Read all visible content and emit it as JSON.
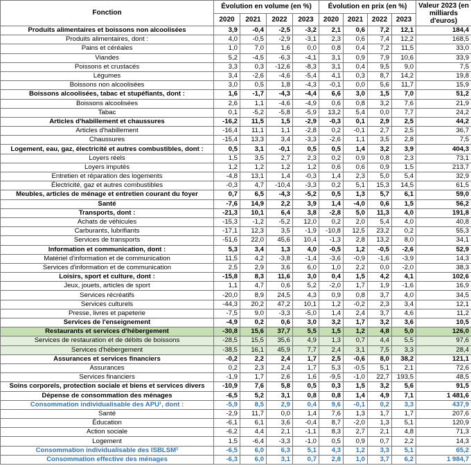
{
  "header": {
    "fonction": "Fonction",
    "volume": "Évolution en volume (en %)",
    "prix": "Évolution en prix (en %)",
    "valeur": "Valeur 2023 (en milliards d'euros)",
    "years_volume": [
      "2020",
      "2021",
      "2022",
      "2023"
    ],
    "years_prix": [
      "2020",
      "2021",
      "2022",
      "2023"
    ]
  },
  "table": {
    "rows": [
      {
        "label": "Produits alimentaires et boissons non alcoolisées",
        "bold": true,
        "volume": [
          "3,9",
          "-0,4",
          "-2,5",
          "-3,2"
        ],
        "prix": [
          "2,1",
          "0,6",
          "7,2",
          "12,1"
        ],
        "valeur": "184,4"
      },
      {
        "label": "Produits alimentaires, dont :",
        "volume": [
          "4,0",
          "-0,5",
          "-2,9",
          "-3,1"
        ],
        "prix": [
          "2,3",
          "0,6",
          "7,4",
          "12,2"
        ],
        "valeur": "168,5"
      },
      {
        "label": "Pains et céréales",
        "volume": [
          "1,0",
          "7,0",
          "1,6",
          "0,0"
        ],
        "prix": [
          "0,8",
          "0,4",
          "7,2",
          "11,5"
        ],
        "valeur": "33,0"
      },
      {
        "label": "Viandes",
        "volume": [
          "5,2",
          "-4,5",
          "-6,3",
          "-4,1"
        ],
        "prix": [
          "3,1",
          "0,9",
          "7,9",
          "10,6"
        ],
        "valeur": "33,9"
      },
      {
        "label": "Poissons et crustacés",
        "volume": [
          "3,3",
          "0,3",
          "-12,6",
          "-8,3"
        ],
        "prix": [
          "3,1",
          "0,4",
          "9,5",
          "9,0"
        ],
        "valeur": "7,5"
      },
      {
        "label": "Légumes",
        "volume": [
          "3,4",
          "-2,6",
          "-4,6",
          "-5,4"
        ],
        "prix": [
          "4,1",
          "0,3",
          "8,7",
          "14,2"
        ],
        "valeur": "19,8"
      },
      {
        "label": "Boissons non alcoolisées",
        "volume": [
          "3,0",
          "0,5",
          "1,8",
          "-4,3"
        ],
        "prix": [
          "-0,1",
          "0,0",
          "5,6",
          "11,7"
        ],
        "valeur": "15,9"
      },
      {
        "label": "Boissons alcoolisées, tabac et stupéfiants, dont :",
        "bold": true,
        "volume": [
          "1,6",
          "-1,7",
          "-4,3",
          "-4,4"
        ],
        "prix": [
          "6,6",
          "3,0",
          "1,5",
          "7,0"
        ],
        "valeur": "51,2"
      },
      {
        "label": "Boissons alcoolisées",
        "volume": [
          "2,6",
          "1,1",
          "-4,6",
          "-4,9"
        ],
        "prix": [
          "0,6",
          "0,8",
          "3,2",
          "7,6"
        ],
        "valeur": "21,9"
      },
      {
        "label": "Tabac",
        "volume": [
          "0,1",
          "-5,2",
          "-5,8",
          "-5,9"
        ],
        "prix": [
          "13,2",
          "5,4",
          "0,0",
          "7,7"
        ],
        "valeur": "24,2"
      },
      {
        "label": "Articles d'habillement et chaussures",
        "bold": true,
        "volume": [
          "-16,2",
          "11,5",
          "1,5",
          "-2,9"
        ],
        "prix": [
          "-0,3",
          "0,1",
          "2,9",
          "2,5"
        ],
        "valeur": "44,2"
      },
      {
        "label": "Articles d'habillement",
        "volume": [
          "-16,4",
          "11,1",
          "1,1",
          "-2,8"
        ],
        "prix": [
          "0,2",
          "-0,1",
          "2,7",
          "2,5"
        ],
        "valeur": "36,7"
      },
      {
        "label": "Chaussures",
        "volume": [
          "-15,4",
          "13,3",
          "3,4",
          "-3,3"
        ],
        "prix": [
          "-2,6",
          "1,1",
          "3,5",
          "2,8"
        ],
        "valeur": "7,5"
      },
      {
        "label": "Logement, eau, gaz, électricité et autres combustibles, dont :",
        "bold": true,
        "volume": [
          "0,5",
          "3,1",
          "-0,1",
          "0,5"
        ],
        "prix": [
          "0,5",
          "1,4",
          "3,2",
          "3,9"
        ],
        "valeur": "404,3"
      },
      {
        "label": "Loyers réels",
        "volume": [
          "1,5",
          "3,5",
          "2,7",
          "2,3"
        ],
        "prix": [
          "0,2",
          "0,9",
          "0,8",
          "2,3"
        ],
        "valeur": "73,1"
      },
      {
        "label": "Loyers imputés",
        "volume": [
          "1,2",
          "1,2",
          "1,2",
          "1,2"
        ],
        "prix": [
          "0,6",
          "0,6",
          "0,9",
          "1,5"
        ],
        "valeur": "213,7"
      },
      {
        "label": "Entretien et réparation des logements",
        "volume": [
          "-4,8",
          "13,1",
          "1,4",
          "-0,3"
        ],
        "prix": [
          "1,4",
          "2,3",
          "5,0",
          "5,4"
        ],
        "valeur": "32,9"
      },
      {
        "label": "Électricité, gaz et autres combustibles",
        "volume": [
          "-0,3",
          "4,7",
          "-10,4",
          "-3,3"
        ],
        "prix": [
          "0,2",
          "5,1",
          "15,3",
          "14,5"
        ],
        "valeur": "61,5"
      },
      {
        "label": "Meubles, articles de ménage et entretien courant du foyer",
        "bold": true,
        "volume": [
          "0,7",
          "6,5",
          "-4,3",
          "-5,2"
        ],
        "prix": [
          "0,5",
          "1,3",
          "5,7",
          "6,1"
        ],
        "valeur": "59,0"
      },
      {
        "label": "Santé",
        "bold": true,
        "volume": [
          "-7,6",
          "14,9",
          "2,2",
          "3,9"
        ],
        "prix": [
          "1,4",
          "-4,0",
          "0,6",
          "1,5"
        ],
        "valeur": "56,2"
      },
      {
        "label": "Transports, dont :",
        "bold": true,
        "volume": [
          "-21,3",
          "10,1",
          "6,4",
          "3,8"
        ],
        "prix": [
          "-2,8",
          "5,0",
          "11,3",
          "4,0"
        ],
        "valeur": "191,8"
      },
      {
        "label": "Achats de véhicules",
        "volume": [
          "-15,3",
          "-1,2",
          "-5,2",
          "12,0"
        ],
        "prix": [
          "0,2",
          "2,0",
          "5,4",
          "4,0"
        ],
        "valeur": "40,8"
      },
      {
        "label": "Carburants, lubrifiants",
        "volume": [
          "-17,1",
          "12,3",
          "3,5",
          "-1,9"
        ],
        "prix": [
          "-10,8",
          "12,5",
          "23,2",
          "0,2"
        ],
        "valeur": "55,3"
      },
      {
        "label": "Services de transports",
        "volume": [
          "-51,6",
          "22,0",
          "45,6",
          "10,4"
        ],
        "prix": [
          "-1,3",
          "2,8",
          "13,2",
          "8,0"
        ],
        "valeur": "34,1"
      },
      {
        "label": "Information et communication, dont :",
        "bold": true,
        "volume": [
          "5,3",
          "3,4",
          "1,3",
          "4,0"
        ],
        "prix": [
          "-0,5",
          "1,2",
          "-0,5",
          "-2,6"
        ],
        "valeur": "52,9"
      },
      {
        "label": "Matériel d'information et de communication",
        "volume": [
          "11,5",
          "4,2",
          "-3,8",
          "-1,4"
        ],
        "prix": [
          "-3,6",
          "-0,9",
          "-1,6",
          "-3,9"
        ],
        "valeur": "14,3"
      },
      {
        "label": "Services d'information et de communication",
        "volume": [
          "2,5",
          "2,9",
          "3,6",
          "6,0"
        ],
        "prix": [
          "1,0",
          "2,2",
          "0,0",
          "-2,0"
        ],
        "valeur": "38,3"
      },
      {
        "label": "Loisirs, sport et culture, dont :",
        "bold": true,
        "volume": [
          "-15,8",
          "8,3",
          "11,6",
          "3,0"
        ],
        "prix": [
          "0,4",
          "1,5",
          "4,2",
          "4,1"
        ],
        "valeur": "102,6"
      },
      {
        "label": "Jeux, jouets, articles de sport",
        "volume": [
          "1,1",
          "4,7",
          "0,6",
          "5,2"
        ],
        "prix": [
          "-2,0",
          "1,7",
          "1,9",
          "-1,6"
        ],
        "valeur": "16,9"
      },
      {
        "label": "Services récréatifs",
        "volume": [
          "-20,0",
          "8,9",
          "24,5",
          "4,3"
        ],
        "prix": [
          "0,9",
          "0,8",
          "3,7",
          "4,0"
        ],
        "valeur": "34,5"
      },
      {
        "label": "Services culturels",
        "volume": [
          "-44,3",
          "20,2",
          "47,2",
          "10,1"
        ],
        "prix": [
          "1,2",
          "-0,2",
          "2,3",
          "3,4"
        ],
        "valeur": "12,1"
      },
      {
        "label": "Presse, livres et papeterie",
        "volume": [
          "-7,5",
          "9,0",
          "-3,3",
          "-5,0"
        ],
        "prix": [
          "1,4",
          "2,4",
          "3,7",
          "4,6"
        ],
        "valeur": "11,2"
      },
      {
        "label": "Services de l'enseignement",
        "bold": true,
        "volume": [
          "-4,9",
          "0,2",
          "0,6",
          "3,0"
        ],
        "prix": [
          "3,2",
          "1,7",
          "3,2",
          "3,6"
        ],
        "valeur": "10,5"
      },
      {
        "label": "Restaurants et services d'hébergement",
        "bold": true,
        "bg": "#c6e0b4",
        "volume": [
          "-30,8",
          "15,6",
          "37,7",
          "5,5"
        ],
        "prix": [
          "1,5",
          "1,2",
          "4,8",
          "5,0"
        ],
        "valeur": "126,0"
      },
      {
        "label": "Services de restauration et de débits de boissons",
        "bg": "#e2efda",
        "volume": [
          "-28,5",
          "15,5",
          "35,6",
          "4,9"
        ],
        "prix": [
          "1,3",
          "0,7",
          "4,4",
          "5,5"
        ],
        "valeur": "97,6"
      },
      {
        "label": "Services d'hébergement",
        "bg": "#e2efda",
        "volume": [
          "-38,5",
          "16,1",
          "45,9",
          "7,7"
        ],
        "prix": [
          "2,4",
          "3,1",
          "7,5",
          "3,3"
        ],
        "valeur": "28,4"
      },
      {
        "label": "Assurances et services financiers",
        "bold": true,
        "volume": [
          "-0,2",
          "2,2",
          "2,4",
          "1,7"
        ],
        "prix": [
          "2,5",
          "-0,6",
          "8,0",
          "38,2"
        ],
        "valeur": "121,1"
      },
      {
        "label": "Assurances",
        "volume": [
          "0,2",
          "2,3",
          "2,4",
          "1,7"
        ],
        "prix": [
          "5,3",
          "-0,5",
          "5,1",
          "2,1"
        ],
        "valeur": "72,6"
      },
      {
        "label": "Services financiers",
        "volume": [
          "-1,9",
          "1,7",
          "2,6",
          "1,6"
        ],
        "prix": [
          "-9,5",
          "-1,0",
          "22,7",
          "193,5"
        ],
        "valeur": "48,5"
      },
      {
        "label": "Soins corporels, protection sociale et biens et services divers",
        "bold": true,
        "volume": [
          "-10,9",
          "7,6",
          "5,8",
          "0,5"
        ],
        "prix": [
          "0,3",
          "1,5",
          "3,2",
          "5,6"
        ],
        "valeur": "91,5"
      },
      {
        "label": "Dépense de consommation des ménages",
        "bold": true,
        "volume": [
          "-6,5",
          "5,2",
          "3,1",
          "0,8"
        ],
        "prix": [
          "0,8",
          "1,4",
          "4,9",
          "7,1"
        ],
        "valeur": "1 481,6"
      },
      {
        "label": "Consommation individualisable des APU¹, dont :",
        "bold": true,
        "color": "#2e75b6",
        "volume": [
          "-5,9",
          "8,5",
          "2,9",
          "0,4"
        ],
        "prix": [
          "9,6",
          "-0,1",
          "0,2",
          "3,3"
        ],
        "valeur": "437,9"
      },
      {
        "label": "Santé",
        "volume": [
          "-2,9",
          "11,7",
          "0,0",
          "1,4"
        ],
        "prix": [
          "7,6",
          "1,3",
          "1,7",
          "1,7"
        ],
        "valeur": "207,6"
      },
      {
        "label": "Éducation",
        "volume": [
          "-6,1",
          "6,1",
          "3,6",
          "-0,4"
        ],
        "prix": [
          "8,7",
          "-2,0",
          "1,3",
          "5,1"
        ],
        "valeur": "120,9"
      },
      {
        "label": "Action sociale",
        "volume": [
          "-6,2",
          "4,4",
          "2,1",
          "-1,1"
        ],
        "prix": [
          "8,3",
          "2,7",
          "2,1",
          "4,8"
        ],
        "valeur": "71,3"
      },
      {
        "label": "Logement",
        "volume": [
          "1,5",
          "-6,4",
          "-3,3",
          "-1,0"
        ],
        "prix": [
          "0,5",
          "0,9",
          "0,7",
          "2,2"
        ],
        "valeur": "14,3"
      },
      {
        "label": "Consommation individualisable des ISBLSM²",
        "bold": true,
        "color": "#2e75b6",
        "volume": [
          "-6,5",
          "6,0",
          "6,3",
          "5,1"
        ],
        "prix": [
          "4,3",
          "1,2",
          "3,3",
          "5,1"
        ],
        "valeur": "65,2"
      },
      {
        "label": "Consommation effective des ménages",
        "bold": true,
        "color": "#2e75b6",
        "volume": [
          "-6,3",
          "6,0",
          "3,1",
          "0,7"
        ],
        "prix": [
          "2,8",
          "1,0",
          "3,7",
          "6,2"
        ],
        "valeur": "1 984,7"
      }
    ]
  }
}
